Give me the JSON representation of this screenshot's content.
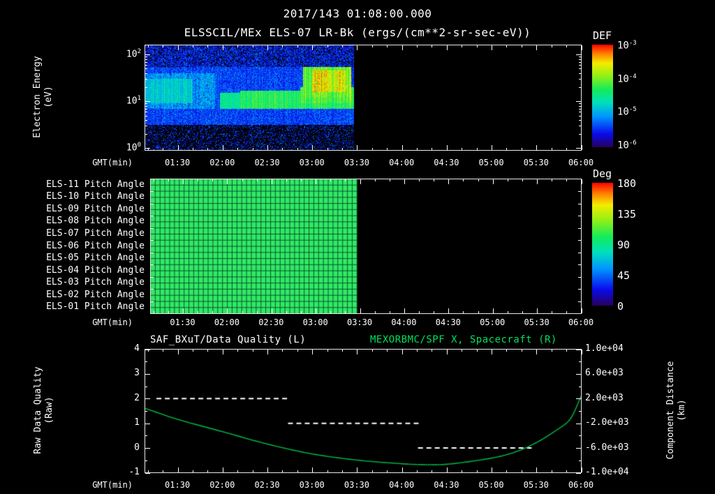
{
  "header": {
    "datetime": "2017/143 01:08:00.000",
    "title": "ELSSCIL/MEx ELS-07 LR-Bk",
    "units": "(ergs/(cm**2-sr-sec-eV))"
  },
  "time_axis": {
    "axis_label": "GMT(min)",
    "start": "01:08",
    "end": "06:00",
    "start_min": 68,
    "end_min": 360,
    "tick_minutes": [
      90,
      120,
      150,
      180,
      210,
      240,
      270,
      300,
      330,
      360
    ],
    "tick_labels": [
      "01:30",
      "02:00",
      "02:30",
      "03:00",
      "03:30",
      "04:00",
      "04:30",
      "05:00",
      "05:30",
      "06:00"
    ]
  },
  "chart_data": [
    {
      "type": "heatmap",
      "name": "electron-energy-spectrogram",
      "title": "ELSSCIL/MEx ELS-07 LR-Bk",
      "units": "ergs/(cm**2-sr-sec-eV)",
      "xlabel": "GMT(min)",
      "ylabel": "Electron Energy",
      "ylabel_units": "(eV)",
      "y_scale": "log",
      "ylim_ev": [
        0.9,
        160
      ],
      "y_tick_energies": [
        100,
        10,
        1
      ],
      "y_tick_labels": [
        "10^2",
        "10^1",
        "10^0"
      ],
      "colorbar": {
        "title": "DEF",
        "scale": "log",
        "range": [
          1e-06,
          0.001
        ],
        "tick_labels": [
          "10^-3",
          "10^-4",
          "10^-5",
          "10^-6"
        ]
      },
      "data_coverage": [
        "01:08",
        "03:28"
      ],
      "data_coverage_min": [
        68,
        208
      ],
      "features": [
        {
          "time": [
            "01:08",
            "03:28"
          ],
          "energy_ev": [
            3,
            160
          ],
          "flux": 4e-06,
          "note": "blue background noise"
        },
        {
          "time": [
            "01:08",
            "01:47"
          ],
          "energy_ev": [
            7,
            40
          ],
          "flux": 1.5e-05,
          "note": "cyan enhancement"
        },
        {
          "time": [
            "02:05",
            "03:28"
          ],
          "energy_ev": [
            7,
            17
          ],
          "flux": 6e-05,
          "note": "green band near 10 eV"
        },
        {
          "time": [
            "02:52",
            "03:26"
          ],
          "energy_ev": [
            11,
            60
          ],
          "flux": 0.00015,
          "note": "bright green-yellow blob"
        },
        {
          "time": [
            "01:08",
            "03:28"
          ],
          "energy_ev": [
            0.9,
            3
          ],
          "flux": 1e-06,
          "note": "dark low-energy band, sparse counts"
        }
      ]
    },
    {
      "type": "heatmap",
      "name": "pitch-angle-panel",
      "rows": [
        "ELS-11 Pitch Angle",
        "ELS-10 Pitch Angle",
        "ELS-09 Pitch Angle",
        "ELS-08 Pitch Angle",
        "ELS-07 Pitch Angle",
        "ELS-06 Pitch Angle",
        "ELS-05 Pitch Angle",
        "ELS-04 Pitch Angle",
        "ELS-03 Pitch Angle",
        "ELS-02 Pitch Angle",
        "ELS-01 Pitch Angle"
      ],
      "xlabel": "GMT(min)",
      "value_deg": 100,
      "data_coverage": [
        "01:08",
        "03:28"
      ],
      "data_coverage_min": [
        68,
        208
      ],
      "colorbar": {
        "title": "Deg",
        "range": [
          0,
          180
        ],
        "tick_labels": [
          "180",
          "135",
          "90",
          "45",
          "0"
        ],
        "tick_values": [
          180,
          135,
          90,
          45,
          0
        ]
      }
    },
    {
      "type": "line",
      "name": "quality-and-distance",
      "title_left": "SAF_BXuT/Data Quality (L)",
      "title_right": "MEXORBMC/SPF X, Spacecraft (R)",
      "xlabel": "GMT(min)",
      "ylabel_left": "Raw Data Quality",
      "ylabel_left_units": "(Raw)",
      "ylabel_right": "Component Distance",
      "ylabel_right_units": "(km)",
      "ylim_left": [
        -1,
        4
      ],
      "y_ticks_left": [
        "4",
        "3",
        "2",
        "1",
        "0",
        "-1"
      ],
      "y_ticks_left_values": [
        4,
        3,
        2,
        1,
        0,
        -1
      ],
      "ylim_right": [
        -10000,
        10000
      ],
      "y_ticks_right": [
        "1.0e+04",
        "6.0e+03",
        "2.0e+03",
        "-2.0e+03",
        "-6.0e+03",
        "-1.0e+04"
      ],
      "y_ticks_right_values": [
        10000,
        6000,
        2000,
        -2000,
        -6000,
        -10000
      ],
      "series": [
        {
          "name": "SAF_BXuT/Data Quality",
          "axis": "left",
          "style": "dashed",
          "color": "#ffffff",
          "segments": [
            {
              "t_min": [
                76,
                165
              ],
              "value": 2
            },
            {
              "t_min": [
                164,
                252
              ],
              "value": 1
            },
            {
              "t_min": [
                251,
                327
              ],
              "value": 0
            }
          ]
        },
        {
          "name": "MEXORBMC/SPF X Spacecraft",
          "axis": "right",
          "style": "solid",
          "color": "#00a940",
          "points": [
            {
              "t_min": 68,
              "km": 400
            },
            {
              "t_min": 90,
              "km": -1400
            },
            {
              "t_min": 120,
              "km": -3400
            },
            {
              "t_min": 150,
              "km": -5400
            },
            {
              "t_min": 180,
              "km": -7000
            },
            {
              "t_min": 210,
              "km": -8000
            },
            {
              "t_min": 240,
              "km": -8600
            },
            {
              "t_min": 256,
              "km": -8750
            },
            {
              "t_min": 272,
              "km": -8650
            },
            {
              "t_min": 300,
              "km": -7700
            },
            {
              "t_min": 316,
              "km": -6700
            },
            {
              "t_min": 330,
              "km": -5200
            },
            {
              "t_min": 344,
              "km": -3100
            },
            {
              "t_min": 353,
              "km": -1300
            },
            {
              "t_min": 360,
              "km": 2300
            }
          ]
        }
      ]
    }
  ],
  "colors": {
    "background": "#000000",
    "foreground": "#ffffff",
    "accent_green": "#00df5f",
    "curve_green": "#00a940"
  }
}
